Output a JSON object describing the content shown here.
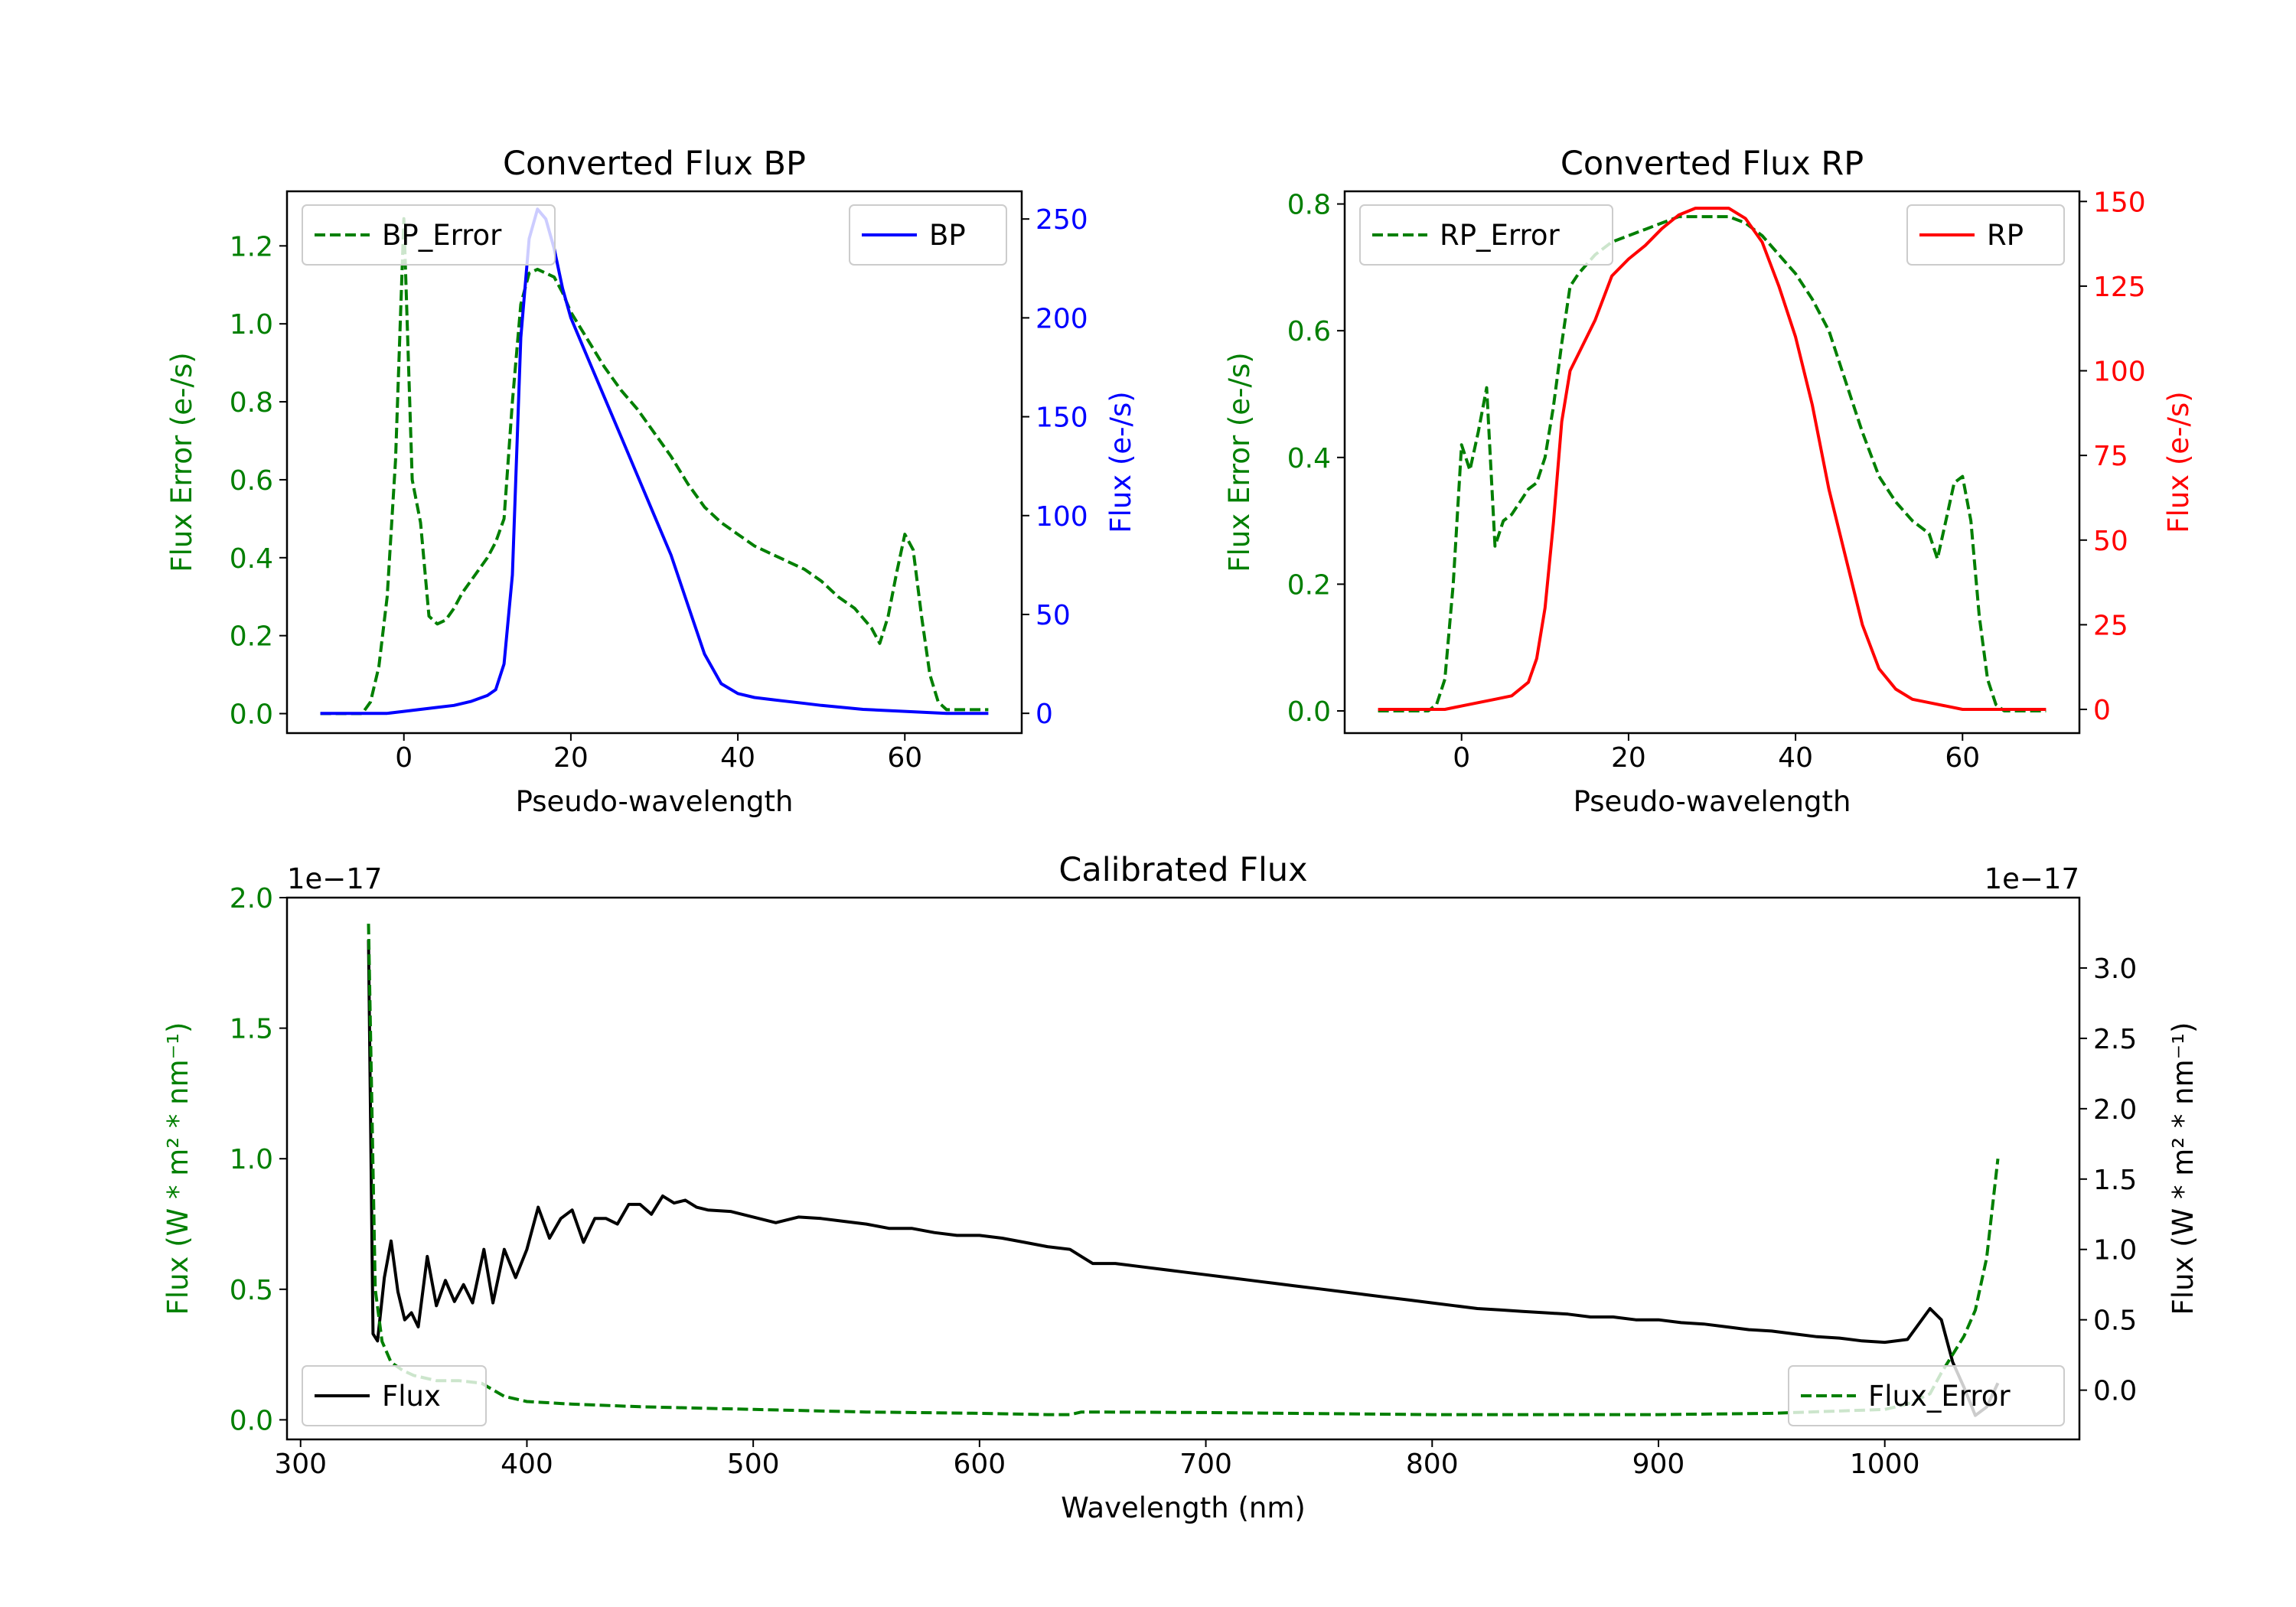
{
  "colors": {
    "green": "#007f00",
    "blue": "#0000ff",
    "red": "#ff0000",
    "black": "#000000"
  },
  "chart_data": [
    {
      "id": "bp",
      "type": "line",
      "title": "Converted Flux BP",
      "xlabel": "Pseudo-wavelength",
      "ylabel_left": "Flux Error (e-/s)",
      "ylabel_right": "Flux (e-/s)",
      "xlim": [
        -14,
        74
      ],
      "ylim_left": [
        -0.05,
        1.34
      ],
      "ylim_right": [
        -10,
        264
      ],
      "x_ticks": [
        {
          "value": 0,
          "label": "0"
        },
        {
          "value": 20,
          "label": "20"
        },
        {
          "value": 40,
          "label": "40"
        },
        {
          "value": 60,
          "label": "60"
        }
      ],
      "yl_ticks": [
        {
          "value": 0,
          "label": "0.0"
        },
        {
          "value": 0.2,
          "label": "0.2"
        },
        {
          "value": 0.4,
          "label": "0.4"
        },
        {
          "value": 0.6,
          "label": "0.6"
        },
        {
          "value": 0.8,
          "label": "0.8"
        },
        {
          "value": 1.0,
          "label": "1.0"
        },
        {
          "value": 1.2,
          "label": "1.2"
        }
      ],
      "yr_ticks": [
        {
          "value": 0,
          "label": "0"
        },
        {
          "value": 50,
          "label": "50"
        },
        {
          "value": 100,
          "label": "100"
        },
        {
          "value": 150,
          "label": "150"
        },
        {
          "value": 200,
          "label": "200"
        },
        {
          "value": 250,
          "label": "250"
        }
      ],
      "legend_left": {
        "label": "BP_Error",
        "placement": "upper left"
      },
      "legend_right": {
        "label": "BP",
        "placement": "upper right"
      },
      "series": [
        {
          "name": "BP_Error",
          "axis": "left",
          "color": "green",
          "style": "dashed",
          "x": [
            -10,
            -5,
            -4,
            -3,
            -2,
            -1,
            0,
            1,
            2,
            3,
            4,
            5,
            6,
            7,
            8,
            9,
            10,
            11,
            12,
            13,
            14,
            15,
            16,
            17,
            18,
            19,
            20,
            22,
            24,
            26,
            28,
            30,
            32,
            34,
            36,
            38,
            40,
            42,
            44,
            46,
            48,
            50,
            52,
            54,
            56,
            57,
            58,
            59,
            60,
            61,
            62,
            63,
            64,
            65,
            70
          ],
          "values": [
            0,
            0,
            0.03,
            0.12,
            0.3,
            0.65,
            1.27,
            0.6,
            0.49,
            0.25,
            0.23,
            0.24,
            0.27,
            0.31,
            0.34,
            0.37,
            0.4,
            0.44,
            0.5,
            0.8,
            1.05,
            1.13,
            1.14,
            1.13,
            1.12,
            1.08,
            1.03,
            0.96,
            0.89,
            0.83,
            0.78,
            0.72,
            0.66,
            0.59,
            0.53,
            0.49,
            0.46,
            0.43,
            0.41,
            0.39,
            0.37,
            0.34,
            0.3,
            0.27,
            0.22,
            0.18,
            0.25,
            0.36,
            0.46,
            0.42,
            0.25,
            0.1,
            0.03,
            0.01,
            0.01
          ]
        },
        {
          "name": "BP",
          "axis": "right",
          "color": "blue",
          "style": "solid",
          "x": [
            -10,
            -4,
            -2,
            0,
            2,
            4,
            6,
            8,
            10,
            11,
            12,
            13,
            14,
            15,
            16,
            17,
            18,
            19,
            20,
            22,
            24,
            26,
            28,
            30,
            32,
            34,
            36,
            38,
            40,
            42,
            44,
            46,
            48,
            50,
            55,
            60,
            65,
            70
          ],
          "values": [
            0,
            0,
            0,
            1,
            2,
            3,
            4,
            6,
            9,
            12,
            25,
            70,
            190,
            240,
            255,
            250,
            235,
            215,
            200,
            180,
            160,
            140,
            120,
            100,
            80,
            55,
            30,
            15,
            10,
            8,
            7,
            6,
            5,
            4,
            2,
            1,
            0,
            0
          ]
        }
      ]
    },
    {
      "id": "rp",
      "type": "line",
      "title": "Converted Flux RP",
      "xlabel": "Pseudo-wavelength",
      "ylabel_left": "Flux Error (e-/s)",
      "ylabel_right": "Flux (e-/s)",
      "xlim": [
        -14,
        74
      ],
      "ylim_left": [
        -0.035,
        0.82
      ],
      "ylim_right": [
        -7,
        153
      ],
      "x_ticks": [
        {
          "value": 0,
          "label": "0"
        },
        {
          "value": 20,
          "label": "20"
        },
        {
          "value": 40,
          "label": "40"
        },
        {
          "value": 60,
          "label": "60"
        }
      ],
      "yl_ticks": [
        {
          "value": 0,
          "label": "0.0"
        },
        {
          "value": 0.2,
          "label": "0.2"
        },
        {
          "value": 0.4,
          "label": "0.4"
        },
        {
          "value": 0.6,
          "label": "0.6"
        },
        {
          "value": 0.8,
          "label": "0.8"
        }
      ],
      "yr_ticks": [
        {
          "value": 0,
          "label": "0"
        },
        {
          "value": 25,
          "label": "25"
        },
        {
          "value": 50,
          "label": "50"
        },
        {
          "value": 75,
          "label": "75"
        },
        {
          "value": 100,
          "label": "100"
        },
        {
          "value": 125,
          "label": "125"
        },
        {
          "value": 150,
          "label": "150"
        }
      ],
      "legend_left": {
        "label": "RP_Error",
        "placement": "upper left"
      },
      "legend_right": {
        "label": "RP",
        "placement": "upper right"
      },
      "series": [
        {
          "name": "RP_Error",
          "axis": "left",
          "color": "green",
          "style": "dashed",
          "x": [
            -10,
            -4,
            -3,
            -2,
            -1,
            0,
            1,
            2,
            3,
            4,
            5,
            6,
            7,
            8,
            9,
            10,
            11,
            12,
            13,
            14,
            16,
            18,
            20,
            22,
            24,
            26,
            28,
            30,
            32,
            34,
            36,
            38,
            40,
            42,
            44,
            46,
            48,
            50,
            52,
            54,
            55,
            56,
            57,
            58,
            59,
            60,
            61,
            62,
            63,
            64,
            65,
            66,
            70
          ],
          "values": [
            0,
            0,
            0.01,
            0.05,
            0.2,
            0.42,
            0.38,
            0.44,
            0.51,
            0.26,
            0.3,
            0.31,
            0.33,
            0.35,
            0.36,
            0.4,
            0.48,
            0.58,
            0.67,
            0.69,
            0.72,
            0.74,
            0.75,
            0.76,
            0.77,
            0.78,
            0.78,
            0.78,
            0.78,
            0.77,
            0.75,
            0.72,
            0.69,
            0.65,
            0.6,
            0.52,
            0.44,
            0.37,
            0.33,
            0.3,
            0.29,
            0.28,
            0.24,
            0.3,
            0.36,
            0.37,
            0.3,
            0.15,
            0.05,
            0.01,
            0,
            0,
            0
          ]
        },
        {
          "name": "RP",
          "axis": "right",
          "color": "red",
          "style": "solid",
          "x": [
            -10,
            -4,
            -2,
            0,
            2,
            4,
            6,
            8,
            9,
            10,
            11,
            12,
            13,
            14,
            16,
            18,
            20,
            22,
            24,
            26,
            28,
            30,
            32,
            34,
            36,
            38,
            40,
            42,
            44,
            46,
            48,
            50,
            52,
            54,
            56,
            58,
            60,
            62,
            64,
            66,
            70
          ],
          "values": [
            0,
            0,
            0,
            1,
            2,
            3,
            4,
            8,
            15,
            30,
            55,
            85,
            100,
            105,
            115,
            128,
            133,
            137,
            142,
            146,
            148,
            148,
            148,
            145,
            138,
            125,
            110,
            90,
            65,
            45,
            25,
            12,
            6,
            3,
            2,
            1,
            0,
            0,
            0,
            0,
            0
          ]
        }
      ]
    },
    {
      "id": "calibrated",
      "type": "line",
      "title": "Calibrated Flux",
      "xlabel": "Wavelength (nm)",
      "ylabel_left": "Flux (W * m² * nm⁻¹)",
      "ylabel_right": "Flux (W * m² * nm⁻¹)",
      "offset_left": "1e−17",
      "offset_right": "1e−17",
      "xlim": [
        294,
        1086
      ],
      "ylim_left": [
        -0.075,
        2.0
      ],
      "ylim_right": [
        -0.35,
        3.5
      ],
      "x_ticks": [
        {
          "value": 300,
          "label": "300"
        },
        {
          "value": 400,
          "label": "400"
        },
        {
          "value": 500,
          "label": "500"
        },
        {
          "value": 600,
          "label": "600"
        },
        {
          "value": 700,
          "label": "700"
        },
        {
          "value": 800,
          "label": "800"
        },
        {
          "value": 900,
          "label": "900"
        },
        {
          "value": 1000,
          "label": "1000"
        }
      ],
      "yl_ticks": [
        {
          "value": 0,
          "label": "0.0"
        },
        {
          "value": 0.5,
          "label": "0.5"
        },
        {
          "value": 1.0,
          "label": "1.0"
        },
        {
          "value": 1.5,
          "label": "1.5"
        },
        {
          "value": 2.0,
          "label": "2.0"
        }
      ],
      "yr_ticks": [
        {
          "value": 0,
          "label": "0.0"
        },
        {
          "value": 0.5,
          "label": "0.5"
        },
        {
          "value": 1.0,
          "label": "1.0"
        },
        {
          "value": 1.5,
          "label": "1.5"
        },
        {
          "value": 2.0,
          "label": "2.0"
        },
        {
          "value": 2.5,
          "label": "2.5"
        },
        {
          "value": 3.0,
          "label": "3.0"
        }
      ],
      "legend_left": {
        "label": "Flux",
        "placement": "lower left"
      },
      "legend_right": {
        "label": "Flux_Error",
        "placement": "lower right"
      },
      "series": [
        {
          "name": "Flux",
          "axis": "right",
          "color": "black",
          "style": "solid",
          "x": [
            330,
            332,
            334,
            337,
            340,
            343,
            346,
            349,
            352,
            356,
            360,
            364,
            368,
            372,
            376,
            381,
            385,
            390,
            395,
            400,
            405,
            410,
            415,
            420,
            425,
            430,
            435,
            440,
            445,
            450,
            455,
            460,
            465,
            470,
            475,
            480,
            490,
            500,
            510,
            520,
            530,
            540,
            550,
            560,
            570,
            580,
            590,
            600,
            610,
            620,
            630,
            640,
            645,
            650,
            660,
            670,
            680,
            690,
            700,
            710,
            720,
            730,
            740,
            750,
            760,
            770,
            780,
            790,
            800,
            810,
            820,
            830,
            840,
            850,
            860,
            870,
            880,
            890,
            900,
            910,
            920,
            930,
            940,
            950,
            960,
            970,
            980,
            990,
            1000,
            1010,
            1020,
            1025,
            1030,
            1035,
            1040,
            1045,
            1050
          ],
          "values": [
            3.2,
            0.4,
            0.35,
            0.8,
            1.06,
            0.7,
            0.5,
            0.55,
            0.45,
            0.95,
            0.6,
            0.78,
            0.63,
            0.75,
            0.62,
            1.0,
            0.62,
            1.0,
            0.8,
            1.0,
            1.3,
            1.08,
            1.22,
            1.28,
            1.05,
            1.22,
            1.22,
            1.18,
            1.32,
            1.32,
            1.25,
            1.38,
            1.33,
            1.35,
            1.3,
            1.28,
            1.27,
            1.23,
            1.19,
            1.23,
            1.22,
            1.2,
            1.18,
            1.15,
            1.15,
            1.12,
            1.1,
            1.1,
            1.08,
            1.05,
            1.02,
            1.0,
            0.95,
            0.9,
            0.9,
            0.88,
            0.86,
            0.84,
            0.82,
            0.8,
            0.78,
            0.76,
            0.74,
            0.72,
            0.7,
            0.68,
            0.66,
            0.64,
            0.62,
            0.6,
            0.58,
            0.57,
            0.56,
            0.55,
            0.54,
            0.52,
            0.52,
            0.5,
            0.5,
            0.48,
            0.47,
            0.45,
            0.43,
            0.42,
            0.4,
            0.38,
            0.37,
            0.35,
            0.34,
            0.36,
            0.58,
            0.5,
            0.2,
            0.02,
            -0.18,
            -0.12,
            0.05
          ]
        },
        {
          "name": "Flux_Error",
          "axis": "left",
          "color": "green",
          "style": "dashed",
          "x": [
            330,
            333,
            336,
            340,
            345,
            350,
            360,
            370,
            380,
            390,
            400,
            420,
            450,
            500,
            550,
            600,
            630,
            640,
            645,
            650,
            700,
            800,
            900,
            950,
            1000,
            1010,
            1020,
            1025,
            1030,
            1035,
            1040,
            1045,
            1050
          ],
          "values": [
            1.9,
            0.5,
            0.3,
            0.22,
            0.19,
            0.17,
            0.15,
            0.15,
            0.14,
            0.09,
            0.07,
            0.06,
            0.05,
            0.04,
            0.03,
            0.025,
            0.02,
            0.02,
            0.03,
            0.03,
            0.028,
            0.02,
            0.02,
            0.025,
            0.04,
            0.06,
            0.1,
            0.18,
            0.25,
            0.32,
            0.42,
            0.62,
            1.0
          ]
        }
      ]
    }
  ]
}
